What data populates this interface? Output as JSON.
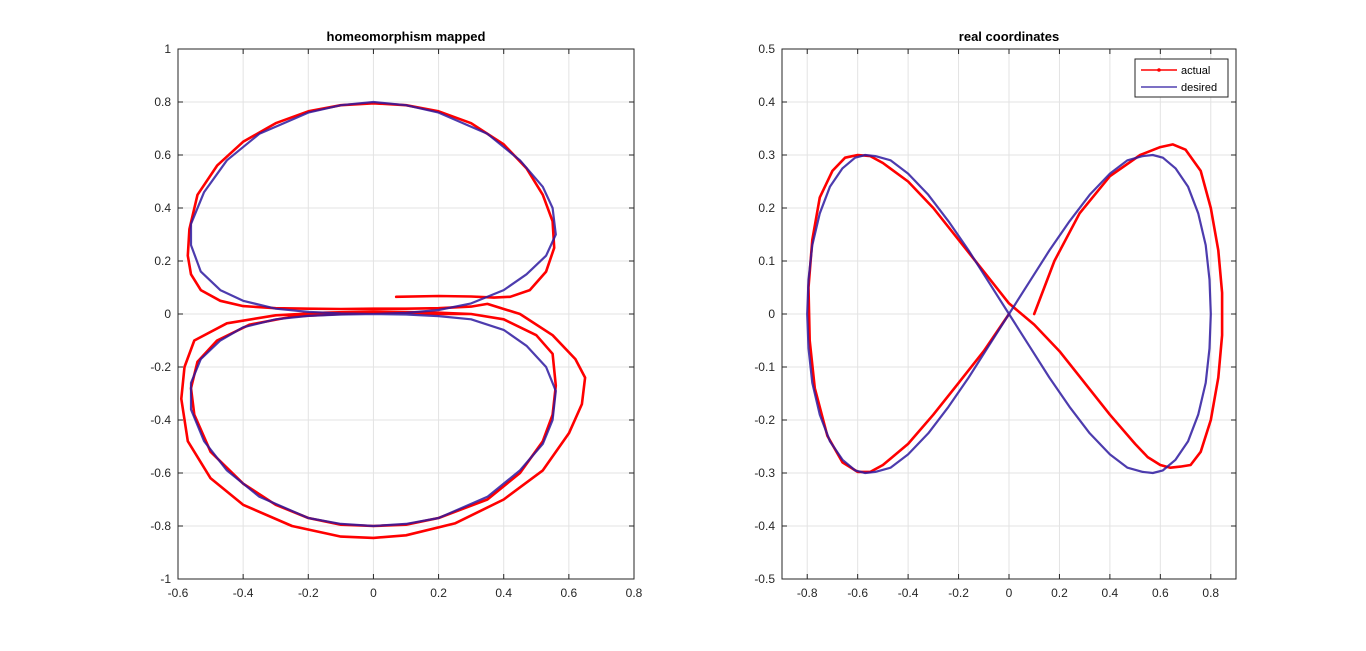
{
  "chart_data": [
    {
      "type": "line",
      "title": "homeomorphism mapped",
      "xlabel": "",
      "ylabel": "",
      "xlim": [
        -0.6,
        0.8
      ],
      "ylim": [
        -1,
        1
      ],
      "xticks": [
        -0.6,
        -0.4,
        -0.2,
        0,
        0.2,
        0.4,
        0.6,
        0.8
      ],
      "yticks": [
        -1,
        -0.8,
        -0.6,
        -0.4,
        -0.2,
        0,
        0.2,
        0.4,
        0.6,
        0.8,
        1
      ],
      "xtick_labels": [
        "-0.6",
        "-0.4",
        "-0.2",
        "0",
        "0.2",
        "0.4",
        "0.6",
        "0.8"
      ],
      "ytick_labels": [
        "-1",
        "-0.8",
        "-0.6",
        "-0.4",
        "-0.2",
        "0",
        "0.2",
        "0.4",
        "0.6",
        "0.8",
        "1"
      ],
      "grid": true,
      "series": [
        {
          "role": "actual",
          "color": "#ff0000",
          "x": [
            0.07,
            0.2,
            0.3,
            0.37,
            0.42,
            0.48,
            0.53,
            0.555,
            0.55,
            0.52,
            0.47,
            0.4,
            0.3,
            0.2,
            0.1,
            0,
            -0.1,
            -0.2,
            -0.3,
            -0.4,
            -0.48,
            -0.54,
            -0.565,
            -0.57,
            -0.56,
            -0.53,
            -0.47,
            -0.4,
            -0.3,
            -0.2,
            -0.1,
            0,
            0.1,
            0.2,
            0.3,
            0.35,
            0.45,
            0.55,
            0.62,
            0.65,
            0.64,
            0.6,
            0.52,
            0.4,
            0.25,
            0.1,
            0,
            -0.1,
            -0.25,
            -0.4,
            -0.5,
            -0.57,
            -0.59,
            -0.58,
            -0.55,
            -0.45,
            -0.3,
            -0.15,
            0,
            0.1,
            0.2,
            0.3,
            0.4,
            0.5,
            0.55,
            0.56,
            0.55,
            0.52,
            0.45,
            0.35,
            0.2,
            0.1,
            0,
            -0.1,
            -0.2,
            -0.3,
            -0.4,
            -0.5,
            -0.55,
            -0.56,
            -0.54,
            -0.48,
            -0.38,
            -0.25,
            -0.1,
            0,
            0.1,
            0.2,
            0.3
          ],
          "y": [
            0.065,
            0.068,
            0.066,
            0.062,
            0.065,
            0.09,
            0.16,
            0.25,
            0.35,
            0.45,
            0.55,
            0.64,
            0.72,
            0.765,
            0.788,
            0.795,
            0.788,
            0.765,
            0.72,
            0.65,
            0.56,
            0.45,
            0.32,
            0.22,
            0.15,
            0.09,
            0.05,
            0.03,
            0.022,
            0.02,
            0.019,
            0.02,
            0.02,
            0.022,
            0.028,
            0.038,
            0.0,
            -0.08,
            -0.17,
            -0.24,
            -0.34,
            -0.45,
            -0.59,
            -0.7,
            -0.79,
            -0.835,
            -0.845,
            -0.84,
            -0.8,
            -0.72,
            -0.62,
            -0.48,
            -0.32,
            -0.2,
            -0.1,
            -0.035,
            -0.005,
            0.005,
            0.01,
            0.007,
            0.005,
            0.0,
            -0.02,
            -0.08,
            -0.15,
            -0.27,
            -0.38,
            -0.48,
            -0.6,
            -0.7,
            -0.77,
            -0.795,
            -0.8,
            -0.795,
            -0.77,
            -0.72,
            -0.64,
            -0.52,
            -0.38,
            -0.28,
            -0.18,
            -0.1,
            -0.04,
            -0.01,
            0.0,
            0.005,
            0.005,
            0.0,
            0.0
          ]
        },
        {
          "role": "desired",
          "color": "#2e1aa0",
          "x": [
            0.0,
            0.1,
            0.2,
            0.3,
            0.4,
            0.47,
            0.53,
            0.56,
            0.55,
            0.52,
            0.45,
            0.35,
            0.2,
            0.1,
            0,
            -0.1,
            -0.2,
            -0.35,
            -0.45,
            -0.52,
            -0.56,
            -0.56,
            -0.53,
            -0.47,
            -0.4,
            -0.3,
            -0.2,
            -0.1,
            0.0,
            0.1,
            0.2,
            0.3,
            0.4,
            0.47,
            0.53,
            0.56,
            0.55,
            0.52,
            0.45,
            0.35,
            0.2,
            0.1,
            0,
            -0.1,
            -0.2,
            -0.35,
            -0.45,
            -0.52,
            -0.56,
            -0.56,
            -0.53,
            -0.47,
            -0.4,
            -0.3,
            -0.2,
            -0.1,
            0.0
          ],
          "y": [
            0.0,
            0.004,
            0.015,
            0.04,
            0.09,
            0.15,
            0.22,
            0.3,
            0.4,
            0.48,
            0.58,
            0.68,
            0.76,
            0.788,
            0.8,
            0.788,
            0.76,
            0.68,
            0.58,
            0.46,
            0.34,
            0.26,
            0.16,
            0.09,
            0.05,
            0.02,
            0.008,
            0.002,
            0.0,
            -0.002,
            -0.008,
            -0.02,
            -0.06,
            -0.12,
            -0.2,
            -0.29,
            -0.4,
            -0.49,
            -0.59,
            -0.69,
            -0.77,
            -0.792,
            -0.8,
            -0.792,
            -0.77,
            -0.69,
            -0.59,
            -0.48,
            -0.36,
            -0.26,
            -0.17,
            -0.1,
            -0.05,
            -0.02,
            -0.007,
            -0.002,
            0.0
          ]
        }
      ]
    },
    {
      "type": "line",
      "title": "real coordinates",
      "xlabel": "",
      "ylabel": "",
      "xlim": [
        -0.9,
        0.9
      ],
      "ylim": [
        -0.5,
        0.5
      ],
      "xticks": [
        -0.8,
        -0.6,
        -0.4,
        -0.2,
        0,
        0.2,
        0.4,
        0.6,
        0.8
      ],
      "yticks": [
        -0.5,
        -0.4,
        -0.3,
        -0.2,
        -0.1,
        0,
        0.1,
        0.2,
        0.3,
        0.4,
        0.5
      ],
      "xtick_labels": [
        "-0.8",
        "-0.6",
        "-0.4",
        "-0.2",
        "0",
        "0.2",
        "0.4",
        "0.6",
        "0.8"
      ],
      "ytick_labels": [
        "-0.5",
        "-0.4",
        "-0.3",
        "-0.2",
        "-0.1",
        "0",
        "0.1",
        "0.2",
        "0.3",
        "0.4",
        "0.5"
      ],
      "grid": true,
      "legend": {
        "position": "top-right",
        "entries": [
          "actual",
          "desired"
        ]
      },
      "series": [
        {
          "name": "actual",
          "color": "#ff0000",
          "marker": "dot",
          "x": [
            0.1,
            0.18,
            0.28,
            0.4,
            0.52,
            0.6,
            0.65,
            0.7,
            0.76,
            0.8,
            0.83,
            0.845,
            0.845,
            0.83,
            0.8,
            0.76,
            0.72,
            0.68,
            0.64,
            0.6,
            0.55,
            0.5,
            0.4,
            0.3,
            0.2,
            0.1,
            0.0,
            -0.1,
            -0.2,
            -0.3,
            -0.4,
            -0.5,
            -0.55,
            -0.6,
            -0.65,
            -0.7,
            -0.75,
            -0.78,
            -0.795,
            -0.79,
            -0.77,
            -0.72,
            -0.66,
            -0.6,
            -0.55,
            -0.5,
            -0.4,
            -0.3,
            -0.2,
            -0.1,
            0.0
          ],
          "y": [
            0.0,
            0.1,
            0.19,
            0.26,
            0.3,
            0.315,
            0.32,
            0.31,
            0.27,
            0.2,
            0.12,
            0.04,
            -0.04,
            -0.12,
            -0.2,
            -0.26,
            -0.285,
            -0.288,
            -0.29,
            -0.285,
            -0.27,
            -0.245,
            -0.19,
            -0.13,
            -0.07,
            -0.02,
            0.02,
            0.08,
            0.14,
            0.2,
            0.25,
            0.285,
            0.298,
            0.3,
            0.295,
            0.27,
            0.22,
            0.14,
            0.05,
            -0.05,
            -0.14,
            -0.23,
            -0.28,
            -0.298,
            -0.298,
            -0.285,
            -0.245,
            -0.19,
            -0.13,
            -0.07,
            0.0
          ]
        },
        {
          "name": "desired",
          "color": "#2e1aa0",
          "x": [
            0.0,
            0.08,
            0.16,
            0.24,
            0.32,
            0.4,
            0.47,
            0.53,
            0.57,
            0.61,
            0.66,
            0.71,
            0.75,
            0.78,
            0.795,
            0.8,
            0.795,
            0.78,
            0.75,
            0.71,
            0.66,
            0.61,
            0.57,
            0.53,
            0.47,
            0.4,
            0.32,
            0.24,
            0.16,
            0.08,
            0.0,
            -0.08,
            -0.16,
            -0.24,
            -0.32,
            -0.4,
            -0.47,
            -0.53,
            -0.57,
            -0.61,
            -0.66,
            -0.71,
            -0.75,
            -0.78,
            -0.795,
            -0.8,
            -0.795,
            -0.78,
            -0.75,
            -0.71,
            -0.66,
            -0.61,
            -0.57,
            -0.53,
            -0.47,
            -0.4,
            -0.32,
            -0.24,
            -0.16,
            -0.08,
            0.0
          ],
          "y": [
            0.0,
            0.06,
            0.12,
            0.175,
            0.225,
            0.265,
            0.29,
            0.298,
            0.3,
            0.295,
            0.275,
            0.24,
            0.19,
            0.13,
            0.065,
            0.0,
            -0.065,
            -0.13,
            -0.19,
            -0.24,
            -0.275,
            -0.295,
            -0.3,
            -0.298,
            -0.29,
            -0.265,
            -0.225,
            -0.175,
            -0.12,
            -0.06,
            0.0,
            0.06,
            0.12,
            0.175,
            0.225,
            0.265,
            0.29,
            0.298,
            0.3,
            0.295,
            0.275,
            0.24,
            0.19,
            0.13,
            0.065,
            0.0,
            -0.065,
            -0.13,
            -0.19,
            -0.24,
            -0.275,
            -0.295,
            -0.3,
            -0.298,
            -0.29,
            -0.265,
            -0.225,
            -0.175,
            -0.12,
            -0.06,
            0.0
          ]
        }
      ]
    }
  ]
}
